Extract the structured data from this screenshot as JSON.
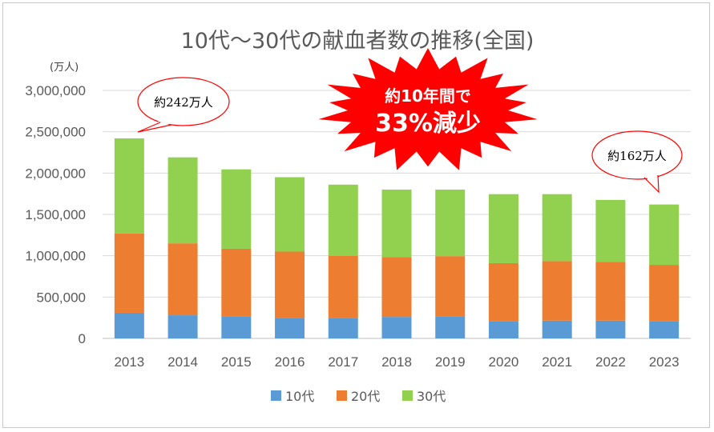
{
  "chart_data": {
    "type": "bar",
    "stacked": true,
    "title": "10代～30代の献血者数の推移(全国)",
    "unit_label": "(万人)",
    "categories": [
      "2013",
      "2014",
      "2015",
      "2016",
      "2017",
      "2018",
      "2019",
      "2020",
      "2021",
      "2022",
      "2023"
    ],
    "series": [
      {
        "name": "10代",
        "color": "#5b9bd5",
        "values": [
          310000,
          280000,
          265000,
          250000,
          250000,
          260000,
          262000,
          210000,
          215000,
          215000,
          210000
        ]
      },
      {
        "name": "20代",
        "color": "#ed7d31",
        "values": [
          960000,
          870000,
          820000,
          800000,
          750000,
          725000,
          733000,
          700000,
          720000,
          710000,
          680000
        ]
      },
      {
        "name": "30代",
        "color": "#92d050",
        "values": [
          1150000,
          1040000,
          960000,
          900000,
          860000,
          815000,
          805000,
          835000,
          810000,
          750000,
          730000
        ]
      }
    ],
    "ylim": [
      0,
      3000000
    ],
    "yticks": [
      "0",
      "500,000",
      "1,000,000",
      "1,500,000",
      "2,000,000",
      "2,500,000",
      "3,000,000"
    ],
    "grid": true,
    "legend_position": "bottom",
    "annotations": {
      "left_bubble": "約242万人",
      "right_bubble": "約162万人",
      "burst_line1": "約10年間で",
      "burst_line2": "33%減少"
    }
  }
}
